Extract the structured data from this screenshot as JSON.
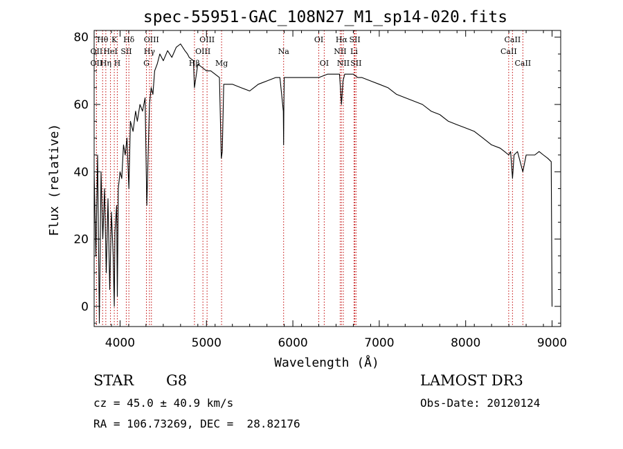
{
  "chart_data": {
    "type": "line",
    "title": "spec-55951-GAC_108N27_M1_sp14-020.fits",
    "xlabel": "Wavelength (Å)",
    "ylabel": "Flux (relative)",
    "xlim": [
      3700,
      9100
    ],
    "ylim": [
      -6,
      82
    ],
    "xticks": [
      4000,
      5000,
      6000,
      7000,
      8000,
      9000
    ],
    "yticks": [
      0,
      20,
      40,
      60,
      80
    ],
    "grid": false,
    "series": [
      {
        "name": "flux",
        "x": [
          3700,
          3720,
          3740,
          3760,
          3780,
          3800,
          3820,
          3840,
          3860,
          3880,
          3900,
          3920,
          3933,
          3940,
          3960,
          3968,
          3980,
          4000,
          4020,
          4040,
          4060,
          4080,
          4102,
          4120,
          4150,
          4180,
          4200,
          4230,
          4260,
          4290,
          4310,
          4340,
          4360,
          4380,
          4400,
          4430,
          4460,
          4500,
          4550,
          4600,
          4650,
          4700,
          4750,
          4780,
          4800,
          4850,
          4861,
          4900,
          4950,
          5000,
          5050,
          5100,
          5150,
          5172,
          5183,
          5200,
          5250,
          5300,
          5400,
          5500,
          5600,
          5700,
          5800,
          5850,
          5890,
          5893,
          5896,
          5900,
          5950,
          6000,
          6100,
          6200,
          6300,
          6400,
          6500,
          6540,
          6563,
          6580,
          6600,
          6650,
          6700,
          6750,
          6800,
          6900,
          7000,
          7100,
          7200,
          7300,
          7400,
          7500,
          7600,
          7700,
          7800,
          7900,
          8000,
          8100,
          8200,
          8300,
          8400,
          8450,
          8498,
          8520,
          8542,
          8560,
          8600,
          8662,
          8700,
          8750,
          8800,
          8850,
          8900,
          8950,
          8990,
          9000,
          9005
        ],
        "y": [
          40,
          15,
          45,
          -5,
          40,
          20,
          35,
          10,
          32,
          5,
          28,
          15,
          0,
          22,
          30,
          3,
          35,
          40,
          38,
          48,
          45,
          50,
          35,
          55,
          52,
          58,
          55,
          60,
          58,
          62,
          30,
          60,
          65,
          63,
          70,
          72,
          75,
          73,
          76,
          74,
          77,
          78,
          76,
          75,
          74,
          73,
          65,
          72,
          71,
          70,
          70,
          69,
          68,
          44,
          46,
          66,
          66,
          66,
          65,
          64,
          66,
          67,
          68,
          68,
          58,
          48,
          60,
          68,
          68,
          68,
          68,
          68,
          68,
          69,
          69,
          69,
          60,
          67,
          69,
          69,
          69,
          68,
          68,
          67,
          66,
          65,
          63,
          62,
          61,
          60,
          58,
          57,
          55,
          54,
          53,
          52,
          50,
          48,
          47,
          46,
          45,
          46,
          38,
          45,
          46,
          40,
          45,
          45,
          45,
          46,
          45,
          44,
          43,
          0,
          0
        ]
      }
    ],
    "lines": [
      {
        "label": "Hθ",
        "wavelength": 3798,
        "row": 0
      },
      {
        "label": "OII",
        "wavelength": 3727,
        "row": 1
      },
      {
        "label": "OII",
        "wavelength": 3727,
        "row": 2
      },
      {
        "label": "K",
        "wavelength": 3933,
        "row": 0
      },
      {
        "label": "HeI",
        "wavelength": 3889,
        "row": 1
      },
      {
        "label": "Hη",
        "wavelength": 3835,
        "row": 2
      },
      {
        "label": "Hδ",
        "wavelength": 4102,
        "row": 0
      },
      {
        "label": "SII",
        "wavelength": 4072,
        "row": 1
      },
      {
        "label": "H",
        "wavelength": 3968,
        "row": 2
      },
      {
        "label": "OIII",
        "wavelength": 4363,
        "row": 0
      },
      {
        "label": "Hγ",
        "wavelength": 4340,
        "row": 1
      },
      {
        "label": "G",
        "wavelength": 4305,
        "row": 2
      },
      {
        "label": "Hβ",
        "wavelength": 4861,
        "row": 2
      },
      {
        "label": "OIII",
        "wavelength": 5007,
        "row": 0
      },
      {
        "label": "OIII",
        "wavelength": 4959,
        "row": 1
      },
      {
        "label": "Mg",
        "wavelength": 5175,
        "row": 2
      },
      {
        "label": "Na",
        "wavelength": 5893,
        "row": 1
      },
      {
        "label": "OI",
        "wavelength": 6300,
        "row": 0
      },
      {
        "label": "OI",
        "wavelength": 6363,
        "row": 2
      },
      {
        "label": "Hα",
        "wavelength": 6563,
        "row": 0
      },
      {
        "label": "NII",
        "wavelength": 6548,
        "row": 1
      },
      {
        "label": "NII",
        "wavelength": 6584,
        "row": 2
      },
      {
        "label": "SII",
        "wavelength": 6717,
        "row": 0
      },
      {
        "label": "Li",
        "wavelength": 6708,
        "row": 1
      },
      {
        "label": "SII",
        "wavelength": 6731,
        "row": 2
      },
      {
        "label": "CaII",
        "wavelength": 8542,
        "row": 0
      },
      {
        "label": "CaII",
        "wavelength": 8498,
        "row": 1
      },
      {
        "label": "CaII",
        "wavelength": 8662,
        "row": 2
      }
    ]
  },
  "info": {
    "class": "STAR",
    "subclass": "G8",
    "survey": "LAMOST DR3",
    "cz": "cz = 45.0 ± 40.9 km/s",
    "obs_date": "Obs-Date: 20120124",
    "coords": "RA = 106.73269, DEC =  28.82176"
  }
}
